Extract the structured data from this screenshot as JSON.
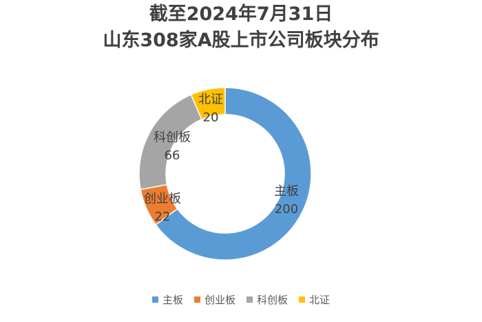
{
  "chart_data": {
    "type": "pie",
    "title": "截至2024年7月31日",
    "subtitle": "山东308家A股上市公司板块分布",
    "categories": [
      "主板",
      "创业板",
      "科创板",
      "北证"
    ],
    "values": [
      200,
      22,
      66,
      20
    ],
    "colors": [
      "#5B9BD5",
      "#ED7D31",
      "#A5A5A5",
      "#FFC000"
    ],
    "legend_position": "bottom",
    "style": "doughnut"
  }
}
